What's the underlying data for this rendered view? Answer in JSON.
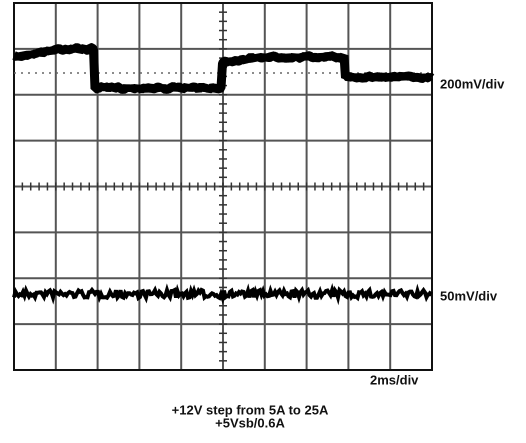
{
  "labels": {
    "ch1_scale": "200mV/div",
    "ch2_scale": "50mV/div",
    "time_scale": "2ms/div"
  },
  "caption": {
    "line1": "+12V step from 5A to 25A",
    "line2": "+5Vsb/0.6A"
  }
}
